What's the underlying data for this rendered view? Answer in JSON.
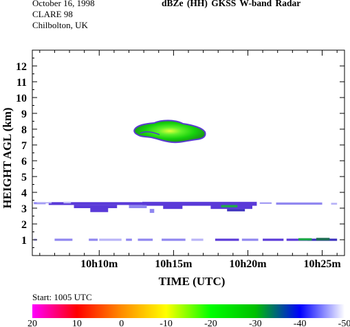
{
  "header": {
    "date": "October 16, 1998",
    "campaign": "CLARE 98",
    "site": "Chilbolton, UK",
    "title": "dBZe (HH)   GKSS  W-band Radar"
  },
  "start_label": "Start: 1005 UTC",
  "colorbar": {
    "tick_labels": [
      "20",
      "10",
      "0",
      "-10",
      "-20",
      "-30",
      "-40",
      "-50"
    ],
    "values": [
      20,
      10,
      0,
      -10,
      -20,
      -30,
      -40,
      -50
    ],
    "stops": [
      "#ff00ff",
      "#ff0000",
      "#ff8c00",
      "#ffff00",
      "#00ff00",
      "#00c000",
      "#0000ff",
      "#ffffff"
    ]
  },
  "chart_data": {
    "type": "heatmap",
    "title": "dBZe (HH)   GKSS  W-band Radar",
    "xlabel": "TIME (UTC)",
    "ylabel": "HEIGHT AGL (km)",
    "xlim": [
      5.5,
      26.5
    ],
    "ylim": [
      0,
      13
    ],
    "x_tick_minutes": [
      10,
      15,
      20,
      25
    ],
    "x_tick_labels": [
      "10h10m",
      "10h15m",
      "10h20m",
      "10h25m"
    ],
    "y_ticks": [
      1,
      2,
      3,
      4,
      5,
      6,
      7,
      8,
      9,
      10,
      11,
      12
    ],
    "y_tick_labels": [
      "1",
      "2",
      "3",
      "4",
      "5",
      "6",
      "7",
      "8",
      "9",
      "10",
      "11",
      "12"
    ],
    "features": [
      {
        "name": "upper cloud",
        "t_start": 12.5,
        "t_end": 16.9,
        "h_bottom": 6.9,
        "h_top": 8.3,
        "dbze_core": -22
      },
      {
        "name": "mid layer",
        "t_start": 5.5,
        "t_end": 26.5,
        "h_bottom": 2.8,
        "h_top": 3.4,
        "dbze": -40
      },
      {
        "name": "low layer",
        "t_start": 5.5,
        "t_end": 26.5,
        "h_bottom": 0.9,
        "h_top": 1.1,
        "dbze": -45
      }
    ]
  },
  "axes_labels": {
    "x": "TIME (UTC)",
    "y": "HEIGHT AGL (km)"
  }
}
